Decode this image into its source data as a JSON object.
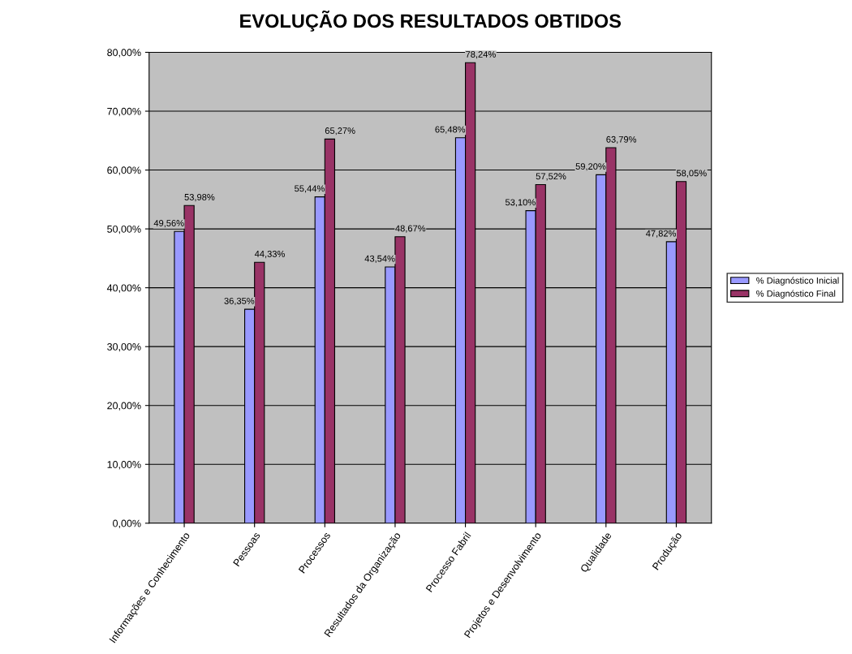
{
  "chart_data": {
    "type": "bar",
    "title": "EVOLUÇÃO DOS RESULTADOS OBTIDOS",
    "categories": [
      "Informações e Conhecimento",
      "Pessoas",
      "Processos",
      "Resultados da Organização",
      "Processo Fabril",
      "Projetos e Desenvolvimento",
      "Qualidade",
      "Produção"
    ],
    "series": [
      {
        "name": "% Diagnóstico Inicial",
        "color": "#9999ff",
        "values": [
          49.56,
          36.35,
          55.44,
          43.54,
          65.48,
          53.1,
          59.2,
          47.82
        ],
        "value_labels": [
          "49,56%",
          "36,35%",
          "55,44%",
          "43,54%",
          "65,48%",
          "53,10%",
          "59,20%",
          "47,82%"
        ]
      },
      {
        "name": "% Diagnóstico Final",
        "color": "#993366",
        "values": [
          53.98,
          44.33,
          65.27,
          48.67,
          78.24,
          57.52,
          63.79,
          58.05
        ],
        "value_labels": [
          "53,98%",
          "44,33%",
          "65,27%",
          "48,67%",
          "78,24%",
          "57,52%",
          "63,79%",
          "58,05%"
        ]
      }
    ],
    "ylim": [
      0,
      80
    ],
    "yticks": [
      {
        "value": 0,
        "label": "0,00%"
      },
      {
        "value": 10,
        "label": "10,00%"
      },
      {
        "value": 20,
        "label": "20,00%"
      },
      {
        "value": 30,
        "label": "30,00%"
      },
      {
        "value": 40,
        "label": "40,00%"
      },
      {
        "value": 50,
        "label": "50,00%"
      },
      {
        "value": 60,
        "label": "60,00%"
      },
      {
        "value": 70,
        "label": "70,00%"
      },
      {
        "value": 80,
        "label": "80,00%"
      }
    ],
    "grid": "y",
    "legend": "right"
  }
}
